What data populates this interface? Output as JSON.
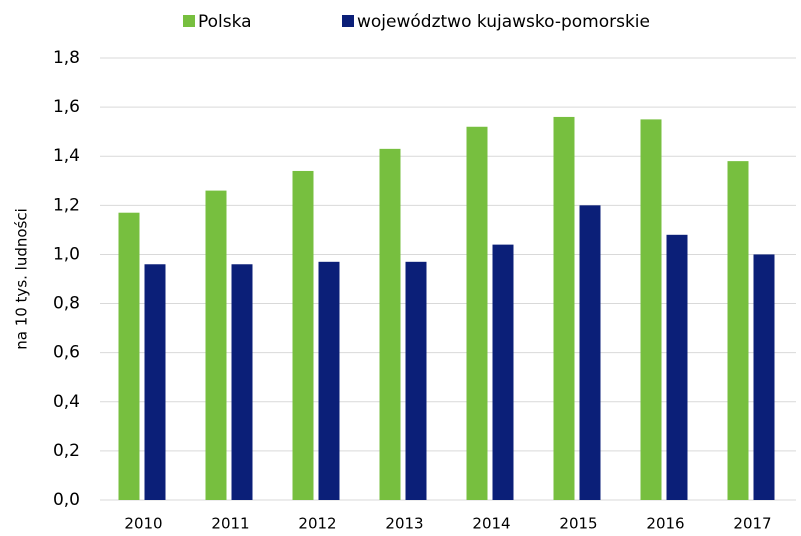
{
  "chart_data": {
    "type": "bar",
    "y_label": "na 10 tys. ludności",
    "categories": [
      "2010",
      "2011",
      "2012",
      "2013",
      "2014",
      "2015",
      "2016",
      "2017"
    ],
    "series": [
      {
        "name": "Polska",
        "color": "#77bf3f",
        "values": [
          1.17,
          1.26,
          1.34,
          1.43,
          1.52,
          1.56,
          1.55,
          1.38
        ]
      },
      {
        "name": "województwo kujawsko-pomorskie",
        "color": "#0b1f78",
        "values": [
          0.96,
          0.96,
          0.97,
          0.97,
          1.04,
          1.2,
          1.08,
          1.0
        ]
      }
    ],
    "ylim": [
      0,
      1.8
    ],
    "yticks": [
      {
        "value": 0,
        "label": "0,0"
      },
      {
        "value": 0.2,
        "label": "0,2"
      },
      {
        "value": 0.4,
        "label": "0,4"
      },
      {
        "value": 0.6,
        "label": "0,6"
      },
      {
        "value": 0.8,
        "label": "0,8"
      },
      {
        "value": 1.0,
        "label": "1,0"
      },
      {
        "value": 1.2,
        "label": "1,2"
      },
      {
        "value": 1.4,
        "label": "1,4"
      },
      {
        "value": 1.6,
        "label": "1,6"
      },
      {
        "value": 1.8,
        "label": "1,8"
      }
    ],
    "grid": true,
    "legend": "top"
  }
}
